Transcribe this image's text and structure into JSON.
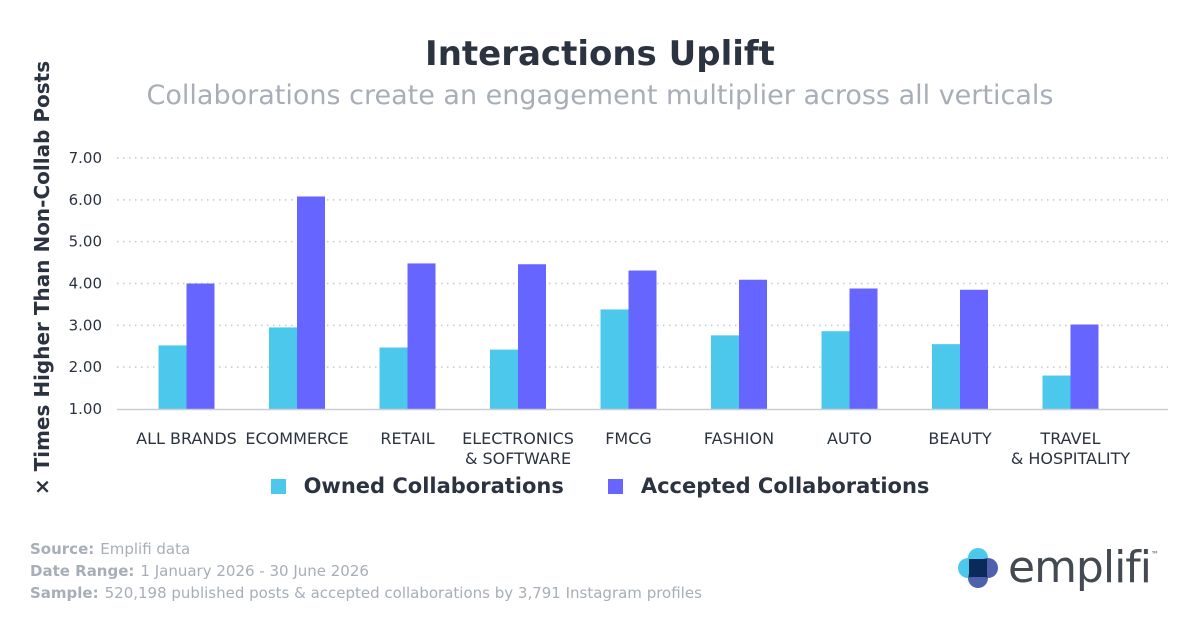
{
  "header": {
    "title": "Interactions Uplift",
    "subtitle": "Collaborations create an engagement multiplier across all verticals"
  },
  "chart_data": {
    "type": "bar",
    "ylabel": "× Times Higher Than Non-Collab Posts",
    "xlabel": "",
    "ylim": [
      1,
      7
    ],
    "yticks": [
      "1.00",
      "2.00",
      "3.00",
      "4.00",
      "5.00",
      "6.00",
      "7.00"
    ],
    "grid": "horizontal dotted",
    "legend_position": "bottom",
    "categories": [
      [
        "ALL BRANDS"
      ],
      [
        "ECOMMERCE"
      ],
      [
        "RETAIL"
      ],
      [
        "ELECTRONICS",
        "& SOFTWARE"
      ],
      [
        "FMCG"
      ],
      [
        "FASHION"
      ],
      [
        "AUTO"
      ],
      [
        "BEAUTY"
      ],
      [
        "TRAVEL",
        "& HOSPITALITY"
      ]
    ],
    "series": [
      {
        "name": "Owned Collaborations",
        "color": "#4cc8ec",
        "values": [
          2.52,
          2.95,
          2.47,
          2.42,
          3.38,
          2.76,
          2.86,
          2.55,
          1.8
        ]
      },
      {
        "name": "Accepted Collaborations",
        "color": "#6665ff",
        "values": [
          4.0,
          6.08,
          4.48,
          4.46,
          4.31,
          4.09,
          3.88,
          3.85,
          3.02
        ]
      }
    ]
  },
  "footer": {
    "source_label": "Source:",
    "source_value": "Emplifi data",
    "date_label": "Date Range:",
    "date_value": "1 January 2026 - 30 June 2026",
    "sample_label": "Sample:",
    "sample_value": "520,198 published posts & accepted collaborations by 3,791 Instagram profiles"
  },
  "logo": {
    "text": "emplifi",
    "tm": "™",
    "colors": [
      "#4cc8ec",
      "#7ea6e8",
      "#3a50a4",
      "#0a2a5a"
    ]
  }
}
